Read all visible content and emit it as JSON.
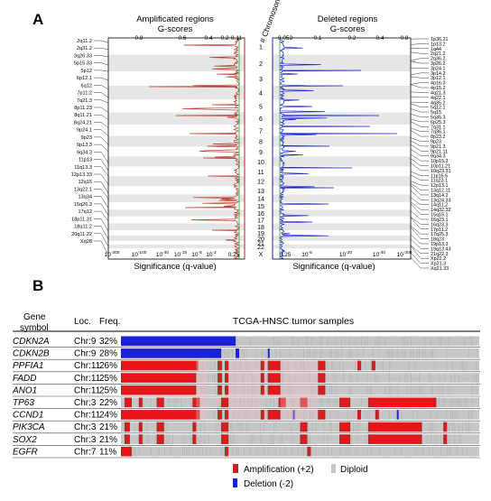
{
  "panel_a": {
    "label": "A",
    "chromosome_axis_label": "# Chromosome",
    "chromosomes": [
      "1",
      "2",
      "3",
      "4",
      "5",
      "6",
      "7",
      "8",
      "9",
      "10",
      "11",
      "12",
      "13",
      "14",
      "15",
      "16",
      "17",
      "18",
      "19",
      "20",
      "21",
      "22",
      "X"
    ],
    "amplified": {
      "title_line1": "Amplificated regions",
      "title_line2": "G-scores",
      "gscore_ticks": [
        "0.8",
        "0.6",
        "0.4",
        "0.2",
        "0.11"
      ],
      "significance_label": "Significance (q-value)",
      "qvalue_ticks": [
        "10-300",
        "10-100",
        "10-40",
        "10-15",
        "10-5",
        "10-2",
        "0.25"
      ],
      "region_labels": [
        "2q11.2",
        "2q31.2",
        "3q26.33",
        "5p15.33",
        "5p12",
        "6p12.1",
        "6q12",
        "7p11.2",
        "7q21.3",
        "8p11.23",
        "8q11.21",
        "8q24.21",
        "9p24.1",
        "9p23",
        "9p13.3",
        "9q34.3",
        "11p13",
        "11q13.3",
        "12p13.33",
        "12q15",
        "13q22.1",
        "13q34",
        "15q26.3",
        "17q12",
        "18p11.31",
        "18q11.2",
        "20q11.22",
        "Xq28"
      ]
    },
    "deleted": {
      "title_line1": "Deleted regions",
      "title_line2": "G-scores",
      "gscore_ticks": [
        "0.053",
        "0.1",
        "0.2",
        "0.4",
        "0.8"
      ],
      "significance_label": "Significance (q-value)",
      "qvalue_ticks": [
        "0.25",
        "10-5",
        "10-20",
        "10-40",
        "10-300"
      ],
      "region_labels": [
        "1p36.21",
        "1p13.2",
        "1q44",
        "2q21.2",
        "2q36.2",
        "3p26.2",
        "3p24.1",
        "3p14.2",
        "3p12.1",
        "4p16.3",
        "4p15.2",
        "4q21.3",
        "4q22.1",
        "4q35.2",
        "5q12.1",
        "5q15",
        "5q35.3",
        "6p25.3",
        "7q31.1",
        "7q36.1",
        "8p23.2",
        "9p23",
        "9p21.3",
        "9p21.11",
        "9q34.3",
        "10p15.3",
        "10p11.21",
        "10q23.31",
        "11p15.5",
        "11q23.1",
        "12p13.1",
        "13q12.11",
        "13q14.2",
        "13q24.33",
        "14q11.2",
        "14q32.32",
        "15q15.1",
        "16q23.1",
        "16q23.3",
        "17p11.2",
        "17q25.3",
        "18q23",
        "19p13.3",
        "19q13.43",
        "21q22.3",
        "Xp22.2",
        "Xp21.3",
        "Xq21.33"
      ]
    }
  },
  "panel_b": {
    "label": "B",
    "col_gene": "Gene symbol",
    "col_loc": "Loc.",
    "col_freq": "Freq.",
    "samples_title": "TCGA-HNSC tumor samples",
    "genes": [
      {
        "symbol": "CDKN2A",
        "loc": "Chr:9",
        "freq": "32%"
      },
      {
        "symbol": "CDKN2B",
        "loc": "Chr:9",
        "freq": "28%"
      },
      {
        "symbol": "PPFIA1",
        "loc": "Chr:11",
        "freq": "26%"
      },
      {
        "symbol": "FADD",
        "loc": "Chr:11",
        "freq": "25%"
      },
      {
        "symbol": "ANO1",
        "loc": "Chr:11",
        "freq": "25%"
      },
      {
        "symbol": "TP63",
        "loc": "Chr:3",
        "freq": "22%"
      },
      {
        "symbol": "CCND1",
        "loc": "Chr:11",
        "freq": "24%"
      },
      {
        "symbol": "PIK3CA",
        "loc": "Chr:3",
        "freq": "21%"
      },
      {
        "symbol": "SOX2",
        "loc": "Chr:3",
        "freq": "21%"
      },
      {
        "symbol": "EGFR",
        "loc": "Chr:7",
        "freq": "11%"
      }
    ],
    "legend": {
      "amplification": "Amplification (+2)",
      "deletion": "Deletion (-2)",
      "diploid": "Diploid"
    },
    "colors": {
      "amplification": "#e8161a",
      "amplification_dark": "#a0322a",
      "deletion": "#1a23d6",
      "diploid": "#c6c6c6",
      "amp_low": "#f3b9bd"
    }
  },
  "chart_data": [
    {
      "type": "line",
      "title": "Amplificated regions",
      "subtitle": "G-scores",
      "xlabel": "Significance (q-value)",
      "ylabel": "# Chromosome",
      "series": [],
      "x_ticks": [
        "10-300",
        "10-100",
        "10-40",
        "10-15",
        "10-5",
        "10-2",
        "0.25"
      ],
      "top_ticks": [
        "0.8",
        "0.6",
        "0.4",
        "0.2",
        "0.11"
      ],
      "grid": false
    },
    {
      "type": "line",
      "title": "Deleted regions",
      "subtitle": "G-scores",
      "xlabel": "Significance (q-value)",
      "x_ticks": [
        "0.25",
        "10-5",
        "10-20",
        "10-40",
        "10-300"
      ],
      "top_ticks": [
        "0.053",
        "0.1",
        "0.2",
        "0.4",
        "0.8"
      ],
      "grid": false
    },
    {
      "type": "heatmap",
      "title": "TCGA-HNSC tumor samples",
      "rows": [
        "CDKN2A",
        "CDKN2B",
        "PPFIA1",
        "FADD",
        "ANO1",
        "TP63",
        "CCND1",
        "PIK3CA",
        "SOX2",
        "EGFR"
      ],
      "values": [
        32,
        28,
        26,
        25,
        25,
        22,
        24,
        21,
        21,
        11
      ],
      "unit": "%"
    }
  ]
}
